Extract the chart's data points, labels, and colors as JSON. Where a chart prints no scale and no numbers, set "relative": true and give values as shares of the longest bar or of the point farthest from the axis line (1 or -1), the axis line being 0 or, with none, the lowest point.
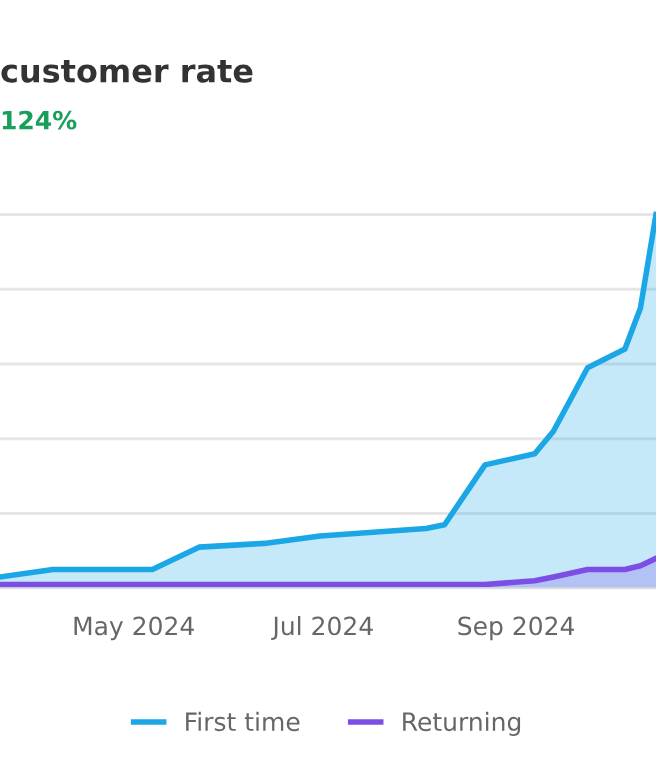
{
  "chart_data": {
    "type": "area",
    "title": "customer rate",
    "subtitle": "124%",
    "relative": true,
    "x": [
      "2024-03-19",
      "2024-04-05",
      "2024-05-07",
      "2024-05-22",
      "2024-06-12",
      "2024-06-30",
      "2024-08-03",
      "2024-08-09",
      "2024-08-22",
      "2024-09-07",
      "2024-09-13",
      "2024-09-24",
      "2024-10-06",
      "2024-10-11",
      "2024-10-16"
    ],
    "series": [
      {
        "name": "First time",
        "color": "#1ba7e6",
        "values": [
          0.03,
          0.05,
          0.05,
          0.11,
          0.12,
          0.14,
          0.16,
          0.17,
          0.33,
          0.36,
          0.42,
          0.59,
          0.64,
          0.75,
          1
        ]
      },
      {
        "name": "Returning",
        "color": "#7b4fe6",
        "values": [
          0.01,
          0.01,
          0.01,
          0.01,
          0.01,
          0.01,
          0.01,
          0.01,
          0.01,
          0.02,
          0.03,
          0.05,
          0.05,
          0.06,
          0.08
        ]
      }
    ],
    "xlim": [
      "2024-03-19",
      "2024-10-16"
    ],
    "xticks": [
      {
        "value": "2024-05-01",
        "label": "May 2024"
      },
      {
        "value": "2024-07-01",
        "label": "Jul 2024"
      },
      {
        "value": "2024-09-01",
        "label": "Sep 2024"
      }
    ],
    "grid": "y",
    "legend": "bottom"
  }
}
